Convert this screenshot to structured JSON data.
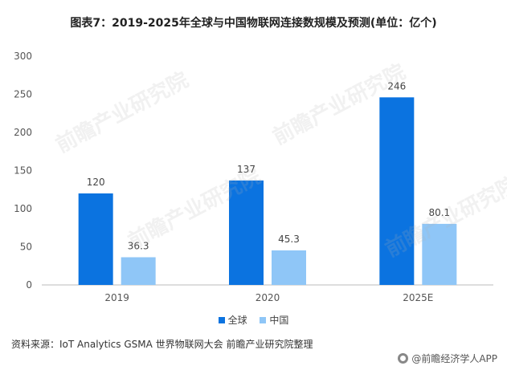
{
  "title": "图表7：2019-2025年全球与中国物联网连接数规模及预测(单位：亿个)",
  "chart_data": {
    "type": "bar",
    "categories": [
      "2019",
      "2020",
      "2025E"
    ],
    "series": [
      {
        "name": "全球",
        "values": [
          120,
          137,
          246
        ],
        "color": "#0b73e0"
      },
      {
        "name": "中国",
        "values": [
          36.3,
          45.3,
          80.1
        ],
        "color": "#8fc6f7"
      }
    ],
    "value_labels": [
      [
        "120",
        "137",
        "246"
      ],
      [
        "36.3",
        "45.3",
        "80.1"
      ]
    ],
    "yticks": [
      0,
      50,
      100,
      150,
      200,
      250,
      300
    ],
    "ylim": [
      0,
      300
    ],
    "legend_position": "bottom",
    "grid": false
  },
  "source": "资料来源：IoT Analytics GSMA 世界物联网大会 前瞻产业研究院整理",
  "brand": "@前瞻经济学人APP",
  "brand_icon": "qianzhan-logo-icon",
  "watermark": "前瞻产业研究院"
}
